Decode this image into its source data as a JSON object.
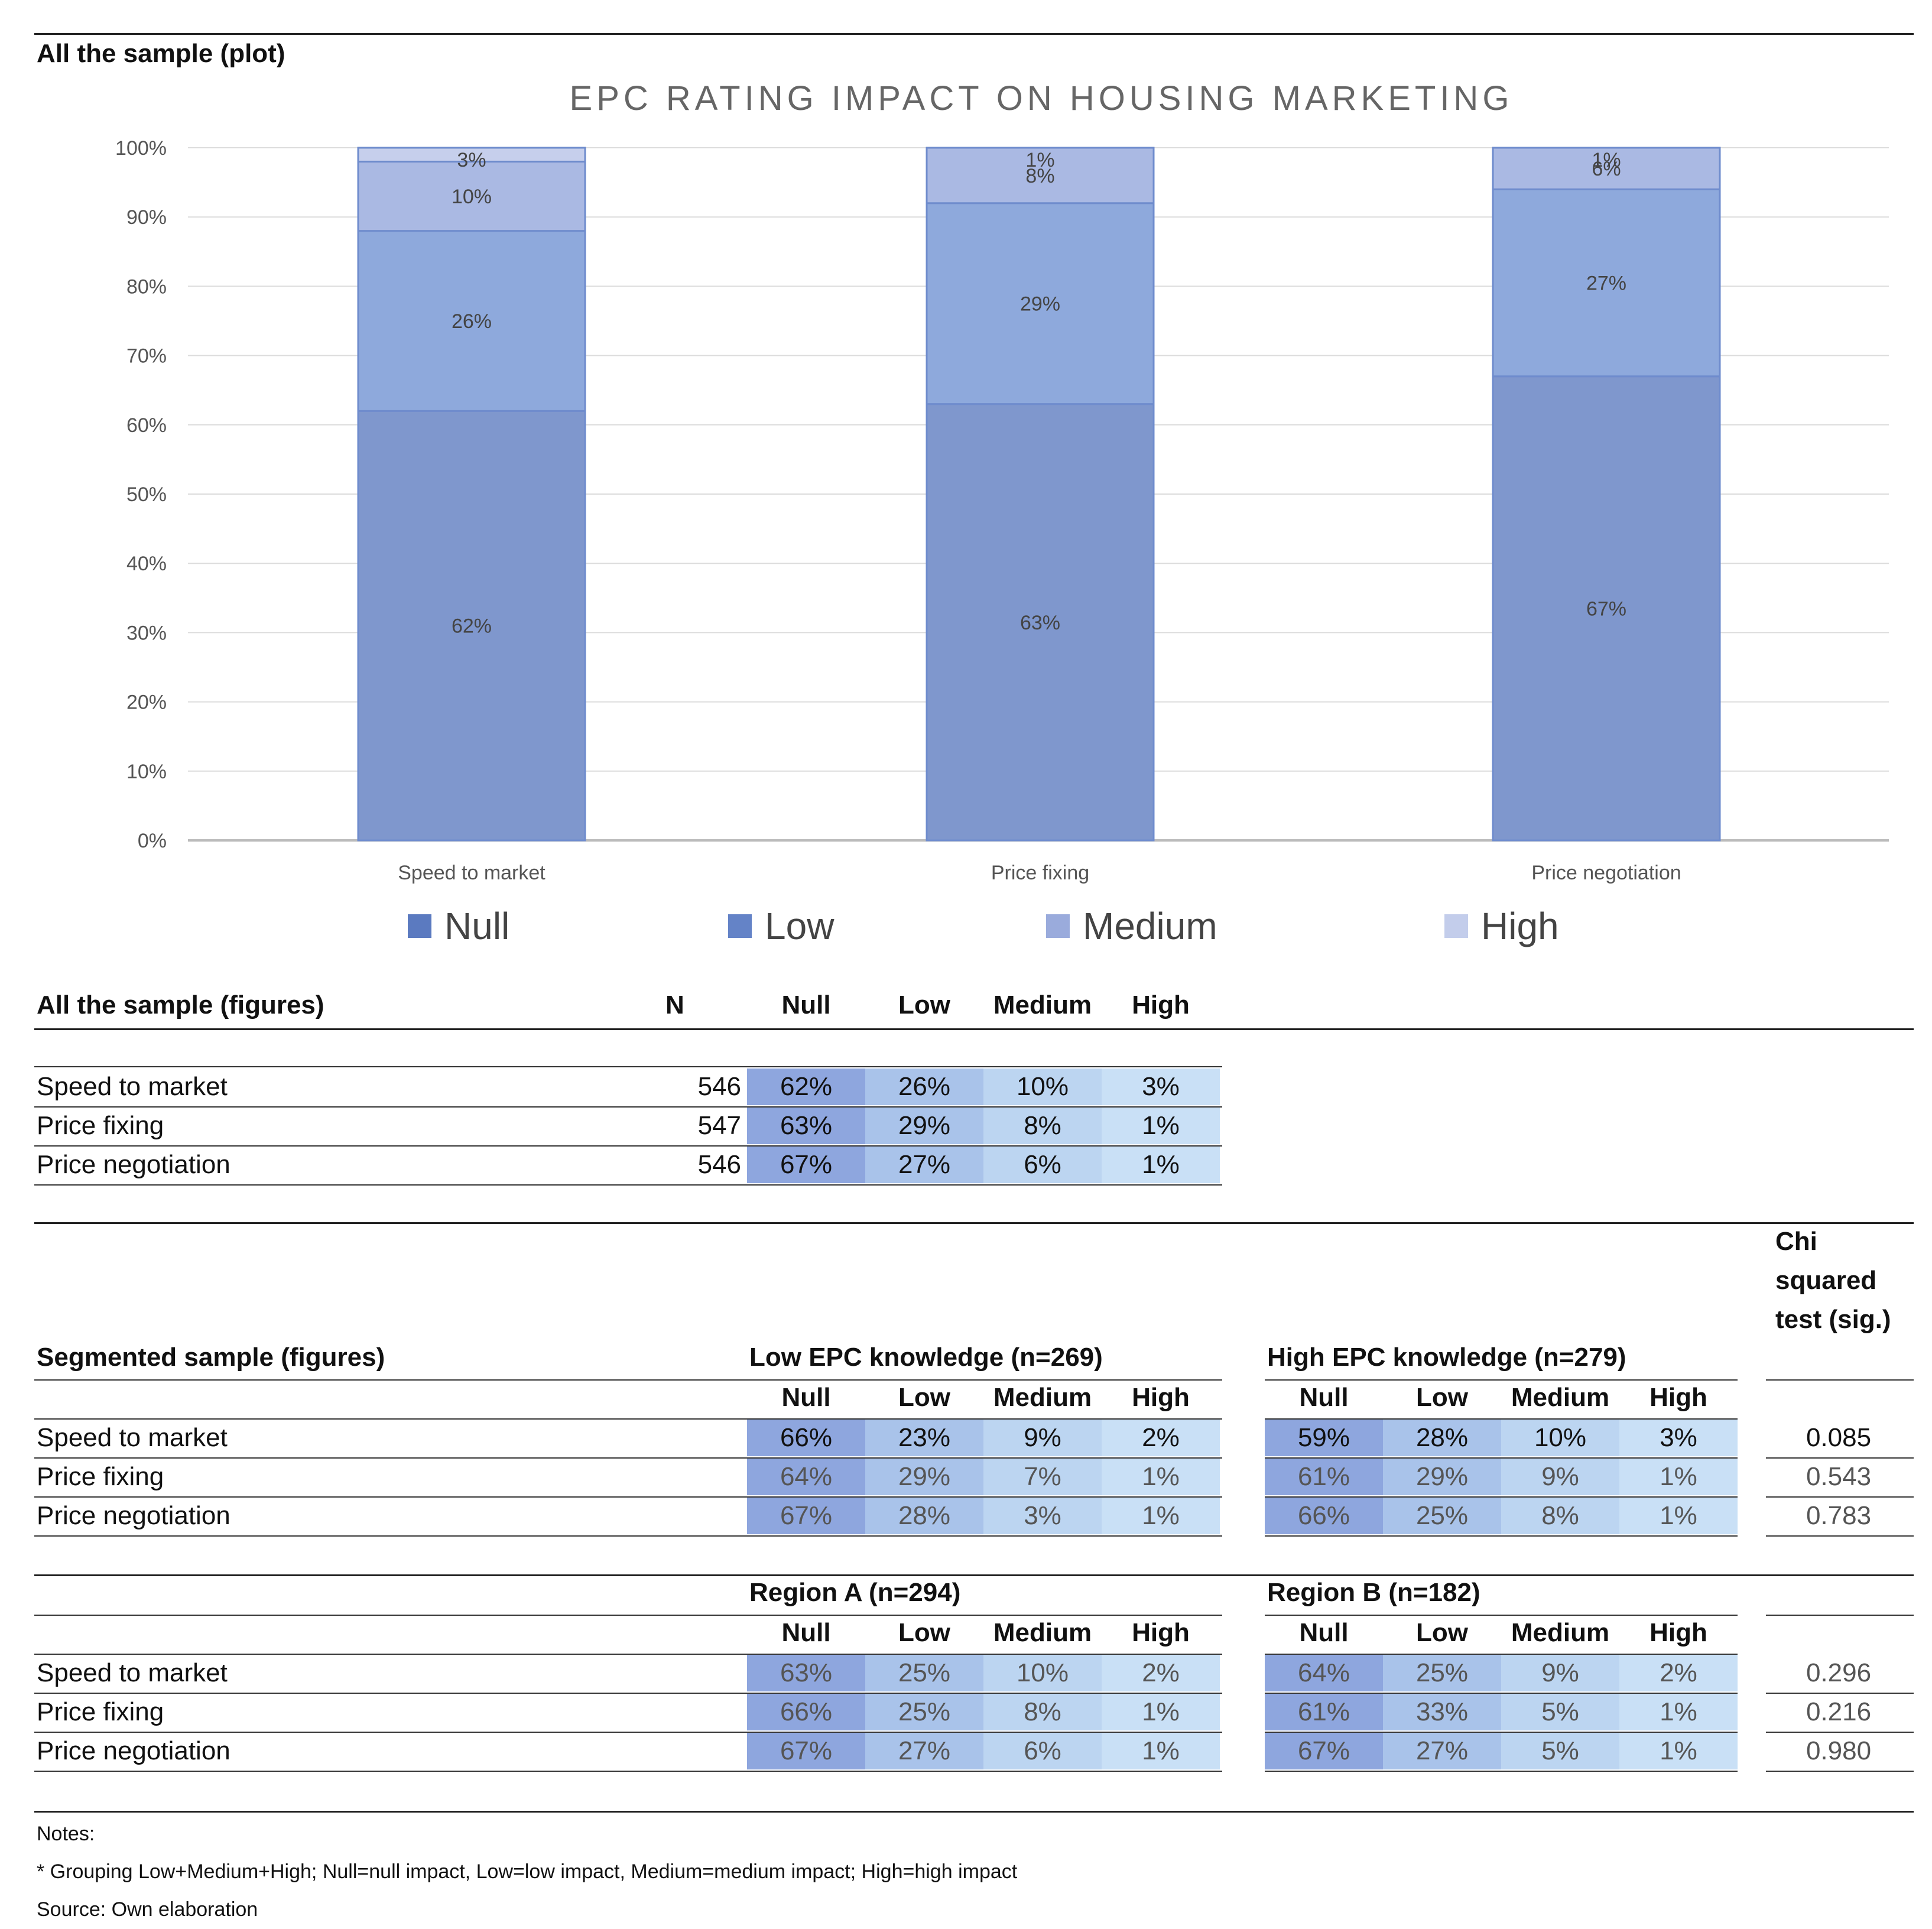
{
  "plot_section_title": "All the sample (plot)",
  "chart_data": {
    "type": "bar",
    "stacked": true,
    "title": "EPC RATING IMPACT ON HOUSING MARKETING",
    "categories": [
      "Speed to market",
      "Price fixing",
      "Price negotiation"
    ],
    "series": [
      {
        "name": "Null",
        "values": [
          62,
          63,
          67
        ],
        "labels": [
          "62%",
          "63%",
          "67%"
        ],
        "color": "#7f97cd"
      },
      {
        "name": "Low",
        "values": [
          26,
          29,
          27
        ],
        "labels": [
          "26%",
          "29%",
          "27%"
        ],
        "color": "#8ea9dc"
      },
      {
        "name": "Medium",
        "values": [
          10,
          8,
          6
        ],
        "labels": [
          "10%",
          "8%",
          "6%"
        ],
        "color": "#aab9e3"
      },
      {
        "name": "High",
        "values": [
          3,
          1,
          1
        ],
        "labels": [
          "3%",
          "1%",
          "1%"
        ],
        "color": "#c6cfec"
      }
    ],
    "y_ticks": [
      "0%",
      "10%",
      "20%",
      "30%",
      "40%",
      "50%",
      "60%",
      "70%",
      "80%",
      "90%",
      "100%"
    ],
    "ylim": [
      0,
      100
    ],
    "grid": true,
    "legend": "bottom",
    "xlabel": "",
    "ylabel": ""
  },
  "legend": {
    "null": "Null",
    "low": "Low",
    "medium": "Medium",
    "high": "High",
    "colors": {
      "null": "#5b7ac0",
      "low": "#6483c7",
      "medium": "#9aabdc",
      "high": "#c3cdeb"
    }
  },
  "figures": {
    "title": "All the sample (figures)",
    "headers": {
      "n": "N",
      "null": "Null",
      "low": "Low",
      "medium": "Medium",
      "high": "High"
    },
    "rows": [
      {
        "label": "Speed to market",
        "n": "546",
        "null": "62%",
        "low": "26%",
        "medium": "10%",
        "high": "3%"
      },
      {
        "label": "Price fixing",
        "n": "547",
        "null": "63%",
        "low": "29%",
        "medium": "8%",
        "high": "1%"
      },
      {
        "label": "Price negotiation",
        "n": "546",
        "null": "67%",
        "low": "27%",
        "medium": "6%",
        "high": "1%"
      }
    ]
  },
  "segmented": {
    "title": "Segmented sample (figures)",
    "chi_header_1": "Chi",
    "chi_header_2": "squared",
    "chi_header_3": "test (sig.)",
    "col_headers": {
      "null": "Null",
      "low": "Low",
      "medium": "Medium",
      "high": "High"
    },
    "row_labels": [
      "Speed to market",
      "Price fixing",
      "Price negotiation"
    ],
    "knowledge": {
      "left_title": "Low EPC knowledge (n=269)",
      "right_title": "High EPC knowledge (n=279)",
      "left": [
        {
          "null": "66%",
          "low": "23%",
          "medium": "9%",
          "high": "2%"
        },
        {
          "null": "64%",
          "low": "29%",
          "medium": "7%",
          "high": "1%"
        },
        {
          "null": "67%",
          "low": "28%",
          "medium": "3%",
          "high": "1%"
        }
      ],
      "right": [
        {
          "null": "59%",
          "low": "28%",
          "medium": "10%",
          "high": "3%"
        },
        {
          "null": "61%",
          "low": "29%",
          "medium": "9%",
          "high": "1%"
        },
        {
          "null": "66%",
          "low": "25%",
          "medium": "8%",
          "high": "1%"
        }
      ],
      "chi": [
        "0.085",
        "0.543",
        "0.783"
      ]
    },
    "region": {
      "left_title": "Region A (n=294)",
      "right_title": "Region B (n=182)",
      "left": [
        {
          "null": "63%",
          "low": "25%",
          "medium": "10%",
          "high": "2%"
        },
        {
          "null": "66%",
          "low": "25%",
          "medium": "8%",
          "high": "1%"
        },
        {
          "null": "67%",
          "low": "27%",
          "medium": "6%",
          "high": "1%"
        }
      ],
      "right": [
        {
          "null": "64%",
          "low": "25%",
          "medium": "9%",
          "high": "2%"
        },
        {
          "null": "61%",
          "low": "33%",
          "medium": "5%",
          "high": "1%"
        },
        {
          "null": "67%",
          "low": "27%",
          "medium": "5%",
          "high": "1%"
        }
      ],
      "chi": [
        "0.296",
        "0.216",
        "0.980"
      ]
    }
  },
  "notes": {
    "title": "Notes:",
    "line1": "* Grouping Low+Medium+High; Null=null impact, Low=low impact, Medium=medium impact; High=high impact",
    "source": "Source: Own elaboration"
  }
}
